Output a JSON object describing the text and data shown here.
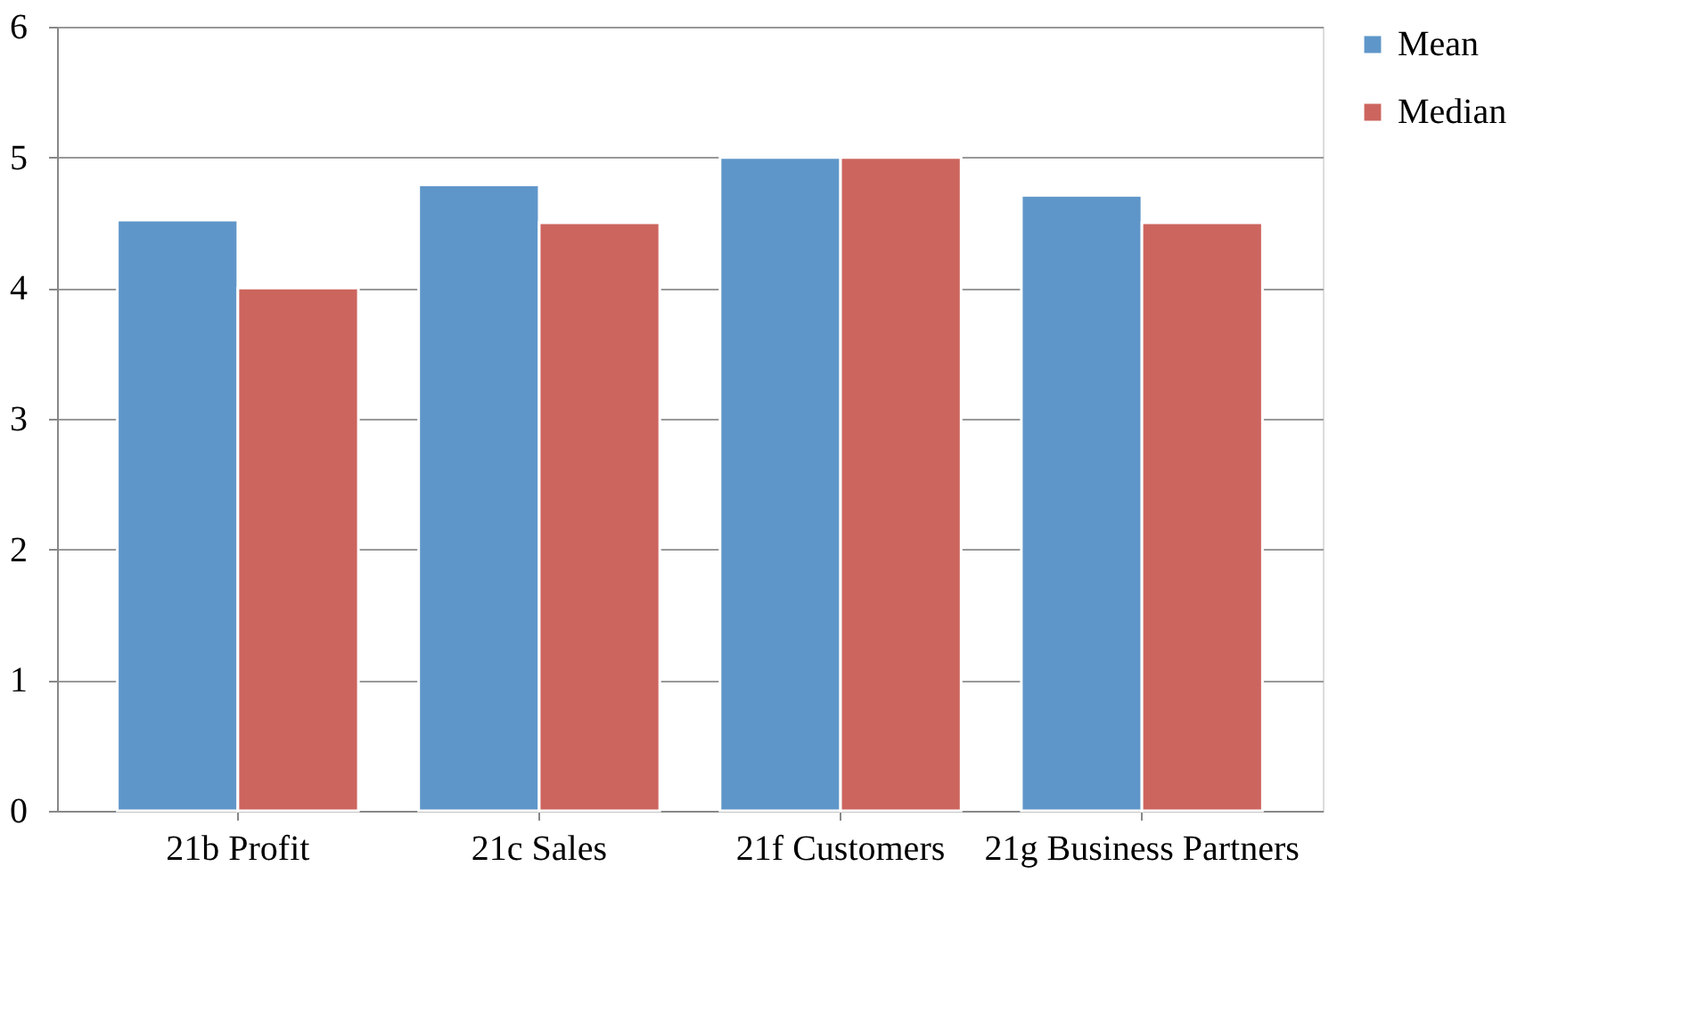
{
  "chart_data": {
    "type": "bar",
    "categories": [
      "21b Profit",
      "21c Sales",
      "21f Customers",
      "21g Business Partners"
    ],
    "series": [
      {
        "name": "Mean",
        "color": "#5f96c9",
        "values": [
          4.52,
          4.79,
          5.0,
          4.71
        ]
      },
      {
        "name": "Median",
        "color": "#cc655e",
        "values": [
          4.0,
          4.5,
          5.0,
          4.5
        ]
      }
    ],
    "ylim": [
      0,
      6
    ],
    "yticks": [
      0,
      1,
      2,
      3,
      4,
      5,
      6
    ],
    "grid": "y",
    "legend": "right"
  }
}
